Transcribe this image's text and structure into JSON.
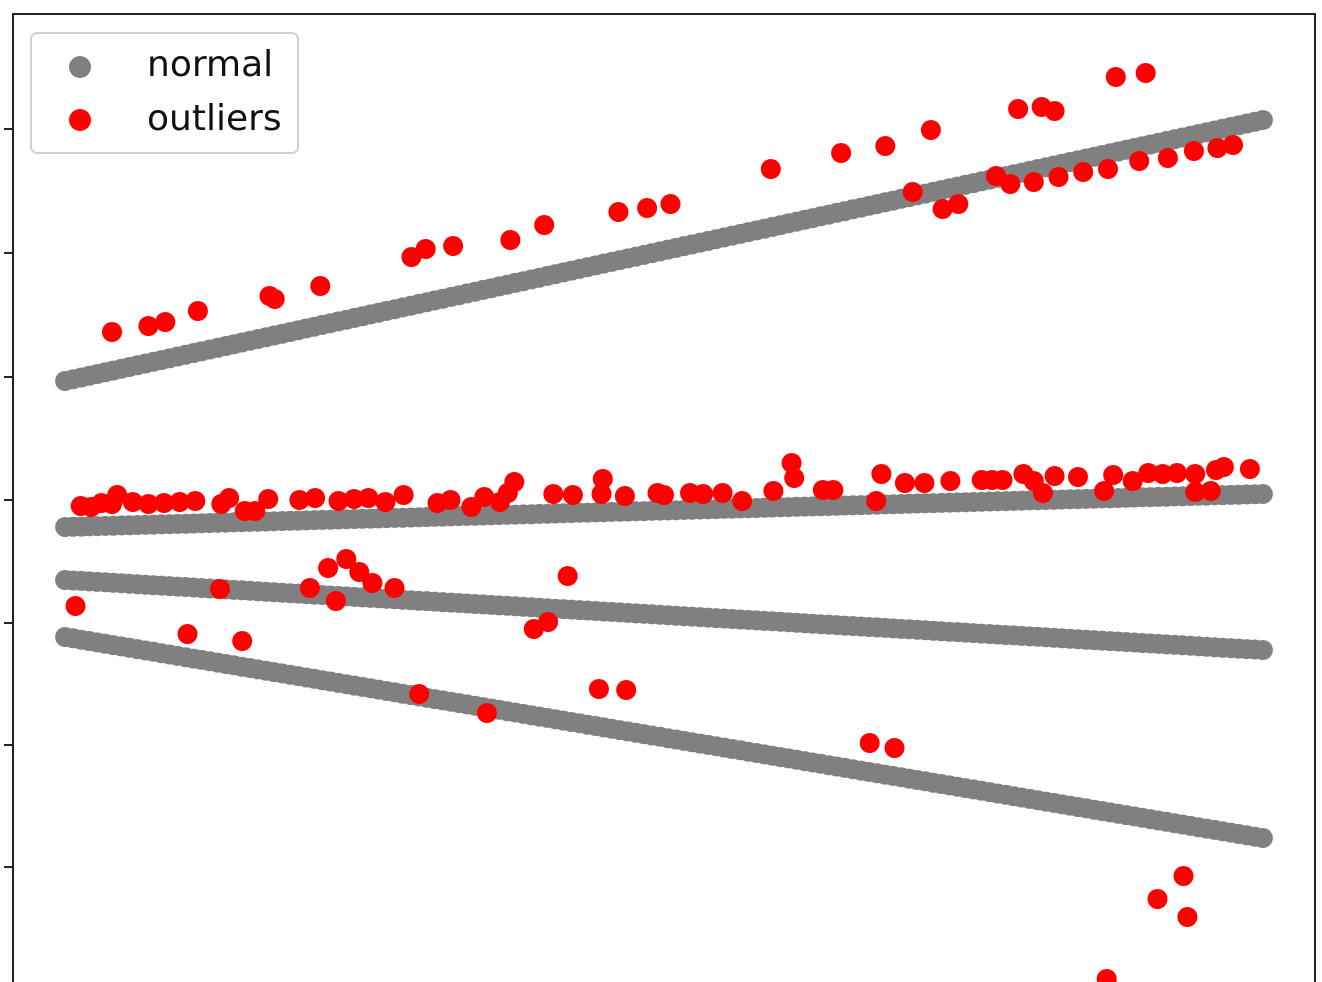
{
  "chart_data": {
    "type": "scatter",
    "title": "",
    "xlabel": "",
    "ylabel": "",
    "x_tick_labels": [],
    "y_tick_labels": [],
    "xlim": [
      0,
      1
    ],
    "ylim": [
      0,
      1
    ],
    "grid": false,
    "legend": {
      "placement": "top-left"
    },
    "series": [
      {
        "name": "normal",
        "color": "#808080",
        "lines": [
          {
            "x0": 0.04,
            "y0": 0.633,
            "x1": 0.96,
            "y1": 0.894
          },
          {
            "x0": 0.04,
            "y0": 0.487,
            "x1": 0.96,
            "y1": 0.52
          },
          {
            "x0": 0.04,
            "y0": 0.434,
            "x1": 0.96,
            "y1": 0.364
          },
          {
            "x0": 0.04,
            "y0": 0.377,
            "x1": 0.96,
            "y1": 0.176
          }
        ],
        "points_per_line": 150
      },
      {
        "name": "outliers",
        "color": "#ff0000",
        "points": [
          [
            0.076,
            0.682
          ],
          [
            0.104,
            0.688
          ],
          [
            0.117,
            0.692
          ],
          [
            0.142,
            0.703
          ],
          [
            0.197,
            0.718
          ],
          [
            0.201,
            0.715
          ],
          [
            0.236,
            0.728
          ],
          [
            0.306,
            0.757
          ],
          [
            0.317,
            0.765
          ],
          [
            0.338,
            0.768
          ],
          [
            0.382,
            0.774
          ],
          [
            0.408,
            0.789
          ],
          [
            0.465,
            0.802
          ],
          [
            0.487,
            0.806
          ],
          [
            0.505,
            0.81
          ],
          [
            0.582,
            0.845
          ],
          [
            0.636,
            0.861
          ],
          [
            0.67,
            0.868
          ],
          [
            0.705,
            0.884
          ],
          [
            0.691,
            0.822
          ],
          [
            0.755,
            0.838
          ],
          [
            0.772,
            0.905
          ],
          [
            0.79,
            0.907
          ],
          [
            0.8,
            0.903
          ],
          [
            0.847,
            0.937
          ],
          [
            0.87,
            0.941
          ],
          [
            0.714,
            0.805
          ],
          [
            0.726,
            0.81
          ],
          [
            0.766,
            0.83
          ],
          [
            0.784,
            0.832
          ],
          [
            0.803,
            0.837
          ],
          [
            0.822,
            0.842
          ],
          [
            0.841,
            0.845
          ],
          [
            0.865,
            0.853
          ],
          [
            0.887,
            0.856
          ],
          [
            0.907,
            0.863
          ],
          [
            0.925,
            0.866
          ],
          [
            0.937,
            0.869
          ],
          [
            0.052,
            0.508
          ],
          [
            0.06,
            0.507
          ],
          [
            0.068,
            0.511
          ],
          [
            0.076,
            0.51
          ],
          [
            0.08,
            0.519
          ],
          [
            0.092,
            0.512
          ],
          [
            0.104,
            0.51
          ],
          [
            0.116,
            0.511
          ],
          [
            0.128,
            0.512
          ],
          [
            0.14,
            0.513
          ],
          [
            0.16,
            0.51
          ],
          [
            0.166,
            0.516
          ],
          [
            0.178,
            0.503
          ],
          [
            0.186,
            0.503
          ],
          [
            0.196,
            0.515
          ],
          [
            0.22,
            0.514
          ],
          [
            0.232,
            0.516
          ],
          [
            0.25,
            0.513
          ],
          [
            0.262,
            0.515
          ],
          [
            0.273,
            0.516
          ],
          [
            0.286,
            0.512
          ],
          [
            0.3,
            0.519
          ],
          [
            0.326,
            0.511
          ],
          [
            0.336,
            0.514
          ],
          [
            0.352,
            0.507
          ],
          [
            0.362,
            0.517
          ],
          [
            0.374,
            0.512
          ],
          [
            0.38,
            0.521
          ],
          [
            0.385,
            0.532
          ],
          [
            0.415,
            0.52
          ],
          [
            0.43,
            0.519
          ],
          [
            0.453,
            0.535
          ],
          [
            0.452,
            0.52
          ],
          [
            0.47,
            0.518
          ],
          [
            0.495,
            0.521
          ],
          [
            0.5,
            0.519
          ],
          [
            0.52,
            0.521
          ],
          [
            0.53,
            0.52
          ],
          [
            0.545,
            0.521
          ],
          [
            0.56,
            0.513
          ],
          [
            0.584,
            0.523
          ],
          [
            0.598,
            0.551
          ],
          [
            0.6,
            0.536
          ],
          [
            0.622,
            0.524
          ],
          [
            0.63,
            0.524
          ],
          [
            0.663,
            0.513
          ],
          [
            0.667,
            0.54
          ],
          [
            0.685,
            0.531
          ],
          [
            0.7,
            0.531
          ],
          [
            0.72,
            0.533
          ],
          [
            0.744,
            0.534
          ],
          [
            0.752,
            0.534
          ],
          [
            0.76,
            0.534
          ],
          [
            0.776,
            0.54
          ],
          [
            0.784,
            0.533
          ],
          [
            0.8,
            0.538
          ],
          [
            0.818,
            0.537
          ],
          [
            0.845,
            0.539
          ],
          [
            0.86,
            0.533
          ],
          [
            0.872,
            0.541
          ],
          [
            0.883,
            0.54
          ],
          [
            0.894,
            0.541
          ],
          [
            0.908,
            0.54
          ],
          [
            0.924,
            0.544
          ],
          [
            0.93,
            0.547
          ],
          [
            0.95,
            0.545
          ],
          [
            0.908,
            0.522
          ],
          [
            0.92,
            0.523
          ],
          [
            0.838,
            0.523
          ],
          [
            0.791,
            0.521
          ],
          [
            0.048,
            0.408
          ],
          [
            0.159,
            0.425
          ],
          [
            0.228,
            0.426
          ],
          [
            0.248,
            0.413
          ],
          [
            0.256,
            0.455
          ],
          [
            0.266,
            0.442
          ],
          [
            0.242,
            0.446
          ],
          [
            0.276,
            0.431
          ],
          [
            0.293,
            0.426
          ],
          [
            0.134,
            0.38
          ],
          [
            0.176,
            0.373
          ],
          [
            0.4,
            0.385
          ],
          [
            0.411,
            0.392
          ],
          [
            0.426,
            0.438
          ],
          [
            0.312,
            0.32
          ],
          [
            0.364,
            0.301
          ],
          [
            0.45,
            0.325
          ],
          [
            0.471,
            0.324
          ],
          [
            0.658,
            0.271
          ],
          [
            0.677,
            0.266
          ],
          [
            0.879,
            0.115
          ],
          [
            0.899,
            0.138
          ],
          [
            0.902,
            0.097
          ],
          [
            0.84,
            0.035
          ]
        ]
      }
    ]
  }
}
